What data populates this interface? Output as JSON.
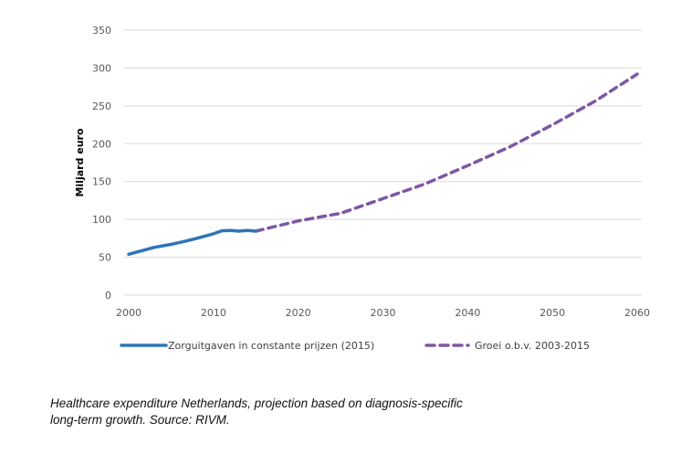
{
  "chart_data": {
    "type": "line",
    "title": "",
    "xlabel": "",
    "ylabel": "Miljard euro",
    "xlim": [
      2000,
      2060
    ],
    "ylim": [
      0,
      350
    ],
    "x_ticks": [
      2000,
      2010,
      2020,
      2030,
      2040,
      2050,
      2060
    ],
    "y_ticks": [
      0,
      50,
      100,
      150,
      200,
      250,
      300,
      350
    ],
    "grid": "horizontal",
    "legend_position": "bottom",
    "series": [
      {
        "name": "Zorguitgaven in constante prijzen (2015)",
        "style": "solid",
        "color": "#2E75B6",
        "x": [
          2000,
          2001,
          2002,
          2003,
          2004,
          2005,
          2006,
          2007,
          2008,
          2009,
          2010,
          2011,
          2012,
          2013,
          2014,
          2015
        ],
        "values": [
          54,
          57,
          60,
          63,
          65,
          67,
          69.5,
          72,
          75,
          78,
          81,
          85,
          85.5,
          84.5,
          85.5,
          84.5
        ]
      },
      {
        "name": "Groei o.b.v. 2003-2015",
        "style": "dashed",
        "color": "#7E57A5",
        "x": [
          2015,
          2020,
          2025,
          2030,
          2035,
          2040,
          2045,
          2050,
          2055,
          2060
        ],
        "values": [
          84.5,
          98,
          108,
          127.5,
          147,
          171,
          196,
          225,
          256,
          292
        ]
      }
    ]
  },
  "caption": {
    "line1": "Healthcare expenditure Netherlands, projection based on diagnosis-specific",
    "line2": "long-term growth. Source: RIVM."
  }
}
